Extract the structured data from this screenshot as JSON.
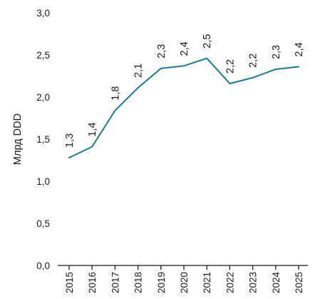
{
  "chart_data": {
    "type": "line",
    "title": "",
    "xlabel": "",
    "ylabel": "Млрд DDD",
    "ylim": [
      0,
      3
    ],
    "yticks": [
      "0,0",
      "0,5",
      "1,0",
      "1,5",
      "2,0",
      "2,5",
      "3,0"
    ],
    "grid": false,
    "legend": "none",
    "categories": [
      "2015",
      "2016",
      "2017",
      "2018",
      "2019",
      "2020",
      "2021",
      "2022",
      "2023",
      "2024",
      "2025"
    ],
    "series": [
      {
        "values": [
          1.28,
          1.41,
          1.84,
          2.11,
          2.34,
          2.37,
          2.46,
          2.16,
          2.23,
          2.33,
          2.36
        ],
        "labels": [
          "1,3",
          "1,4",
          "1,8",
          "2,1",
          "2,3",
          "2,4",
          "2,5",
          "2,2",
          "2,2",
          "2,3",
          "2,4"
        ],
        "color": "#1a7a8c"
      }
    ],
    "axis_color": "#1a1a1a"
  }
}
